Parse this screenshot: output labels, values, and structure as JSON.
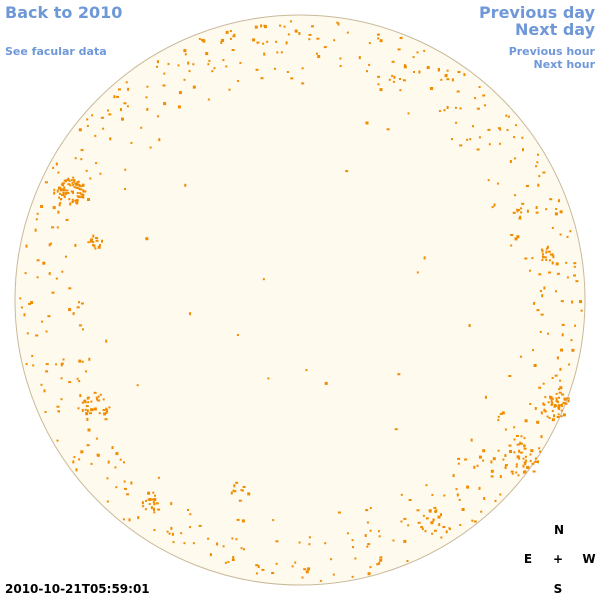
{
  "nav": {
    "back": "Back to 2010",
    "facular": "See facular data",
    "prev_day": "Previous day",
    "next_day": "Next day",
    "prev_hour": "Previous hour",
    "next_hour": "Next hour"
  },
  "compass": {
    "north": "N",
    "east": "E",
    "center": "+",
    "west": "W",
    "south": "S"
  },
  "timestamp": "2010-10-21T05:59:01",
  "colors": {
    "link": "#6f98d8",
    "disk_fill": "#fffaee",
    "disk_stroke": "#c9b99a",
    "spots": "#f08c00"
  }
}
